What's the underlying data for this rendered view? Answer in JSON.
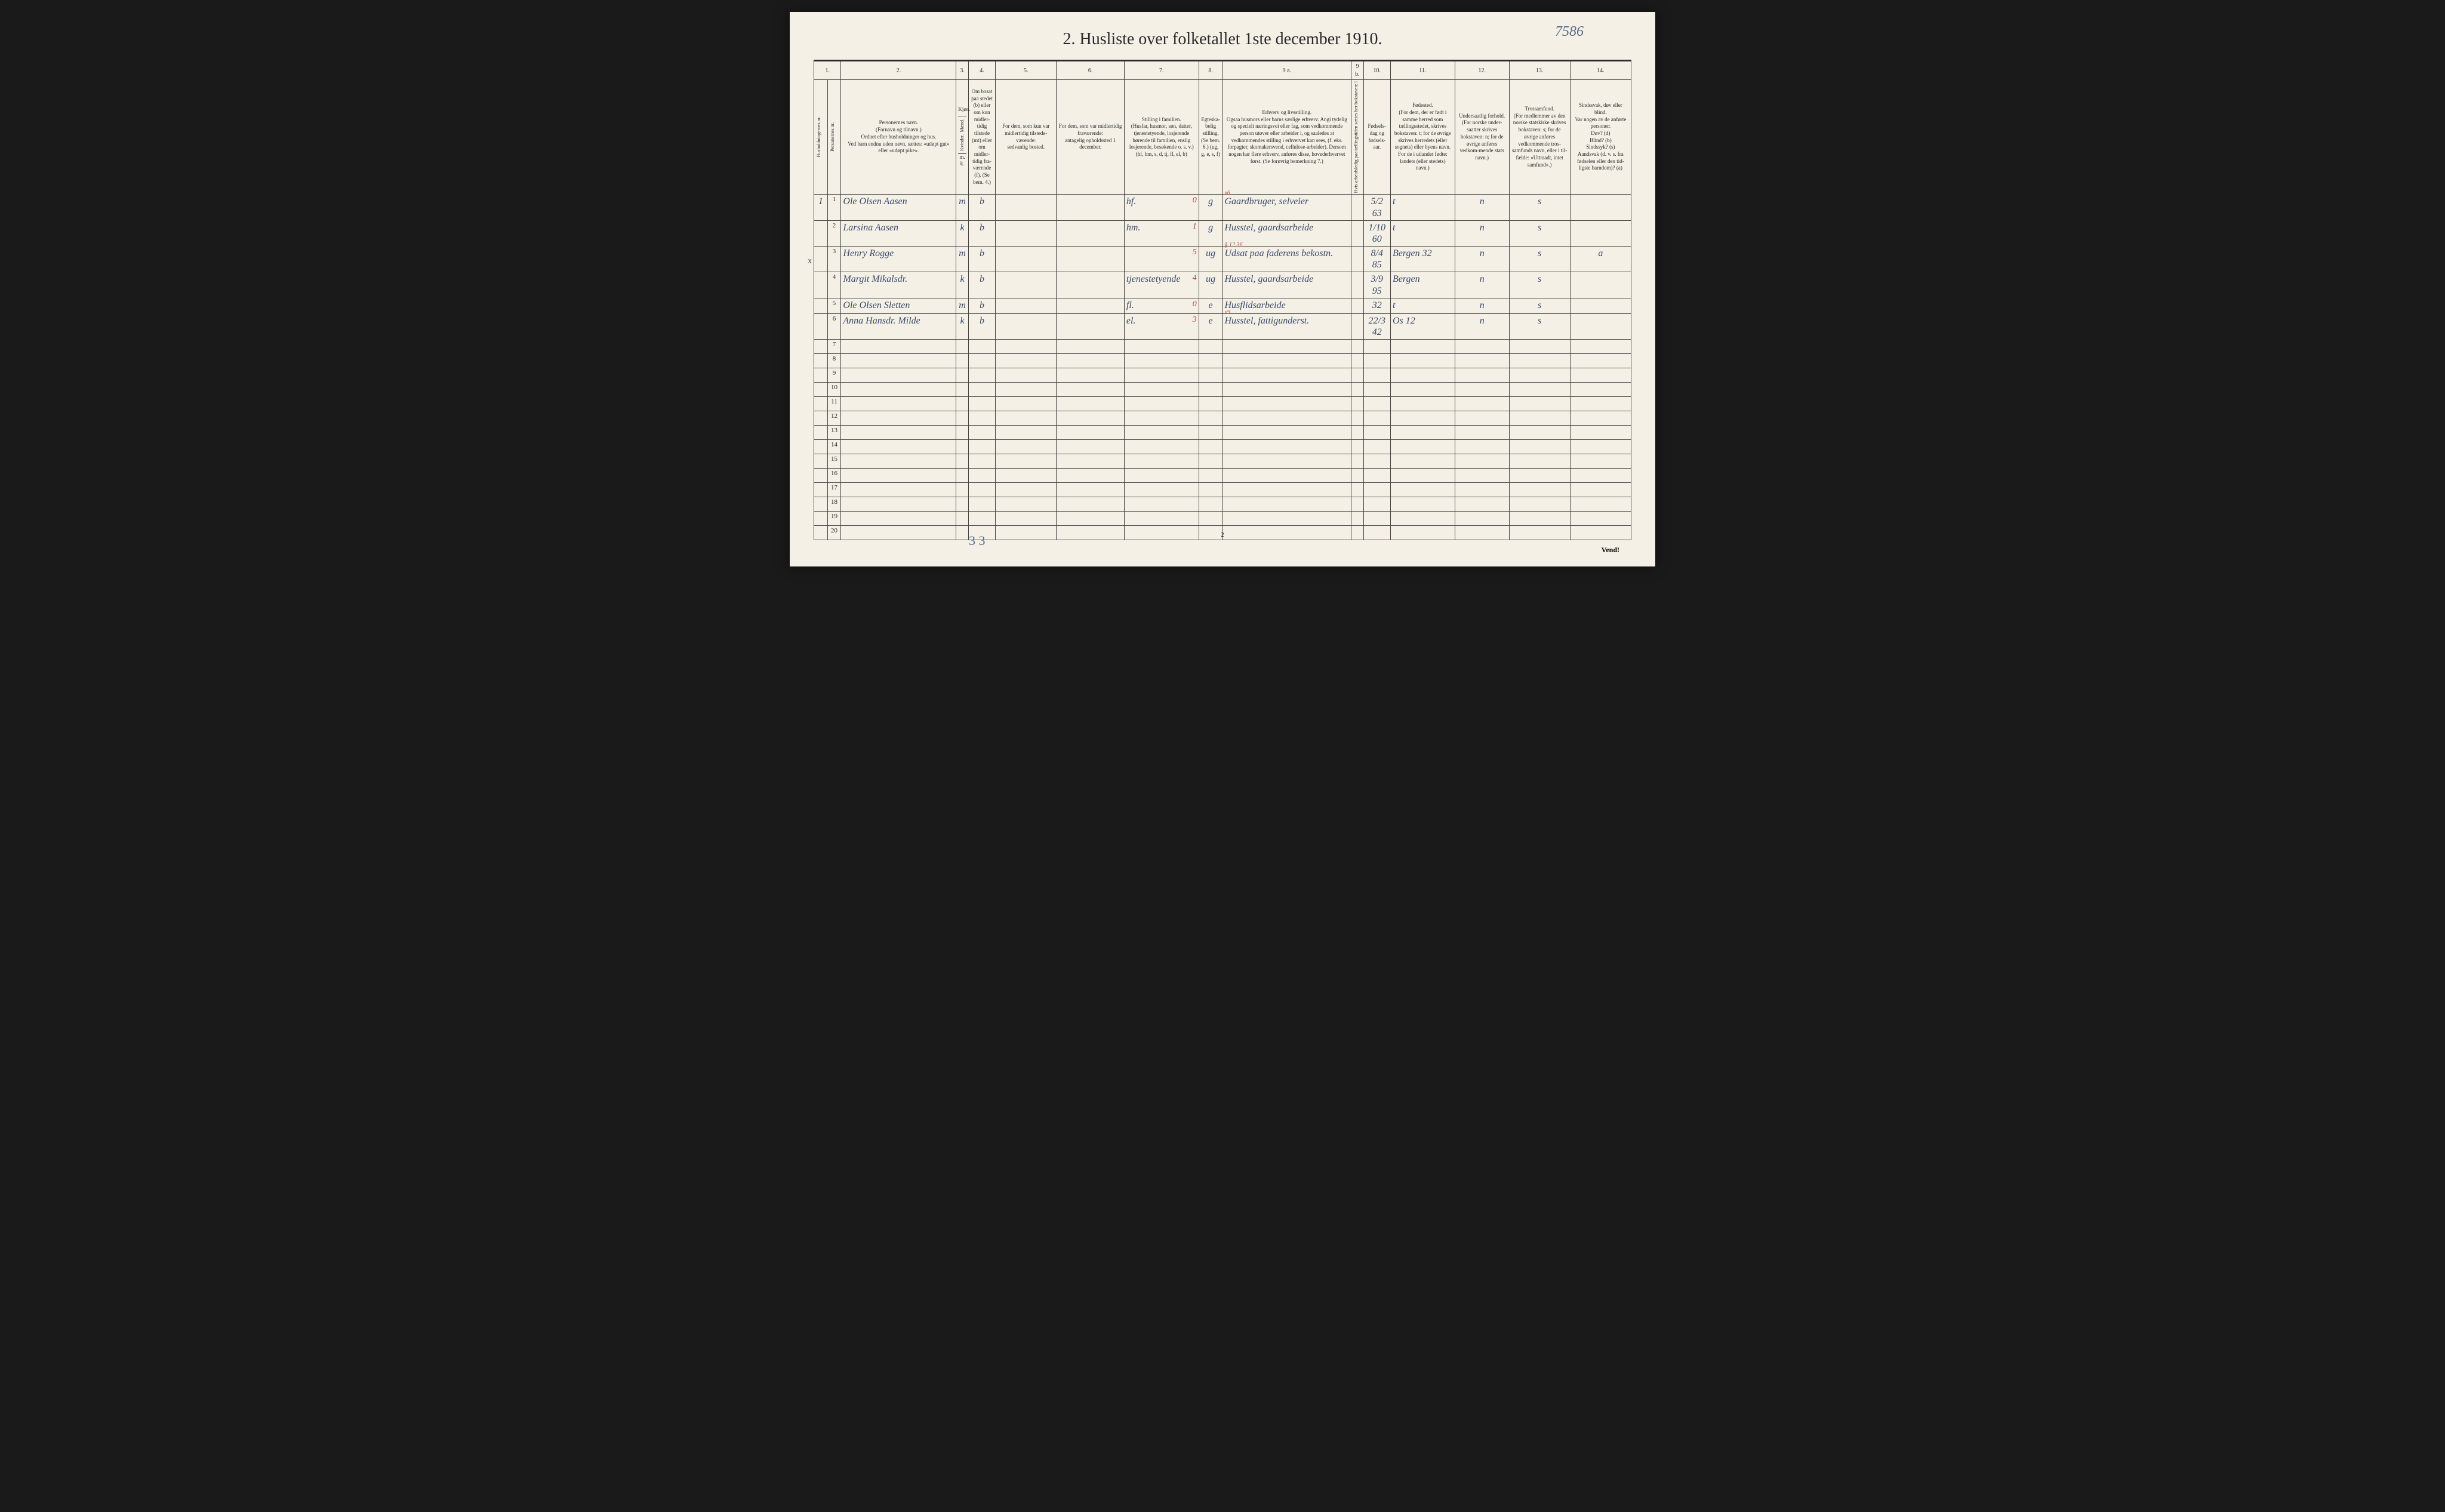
{
  "handwritten_page_no": "7586",
  "title": "2.  Husliste over folketallet 1ste december 1910.",
  "column_numbers": [
    "1.",
    "2.",
    "3.",
    "4.",
    "5.",
    "6.",
    "7.",
    "8.",
    "9 a.",
    "9 b.",
    "10.",
    "11.",
    "12.",
    "13.",
    "14."
  ],
  "headers": {
    "hush_nr": "Husholdningernes nr.",
    "pers_nr": "Personernes nr.",
    "navn": "Personernes navn.\n(Fornavn og tilnavn.)\nOrdnet efter husholdninger og hus.\nVed barn endnu uden navn, sættes: «udøpt gut» eller «udøpt pike».",
    "kjon": "Kjøn.",
    "kjon_m": "Mænd.",
    "kjon_k": "Kvinder.",
    "kjon_mk": "m.  k.",
    "bosat": "Om bosat paa stedet (b) eller om kun midler-tidig tilstede (mt) eller om midler-tidig fra-værende (f). (Se bem. 4.)",
    "midler": "For dem, som kun var midlertidig tilstede-værende:\nsedvanlig bosted.",
    "frav": "For dem, som var midlertidig fraværende:\nantagelig opholdssted 1 december.",
    "stilling_fam": "Stilling i familien.\n(Husfar, husmor, søn, datter, tjenestetyende, losjerende hørende til familien, enslig losjerende, besøkende o. s. v.)\n(hf, hm, s, d, tj, fl, el, b)",
    "egt": "Egteska-belig stilling. (Se bem. 6.) (ug, g, e, s, f)",
    "erhverv": "Erhverv og livsstilling.\nOgsaa husmors eller barns særlige erhverv. Angi tydelig og specielt næringsvei eller fag, som vedkommende person utøver eller arbeider i, og saaledes at vedkommendes stilling i erhvervet kan sees, (f. eks. forpagter, skomakersvend, cellulose-arbeider). Dersom nogen har flere erhverv, anføres disse, hovederhvervet først. (Se forøvrig bemerkning 7.)",
    "col9b": "Hvis arbeidsledig paa tællingstiden sættes her bokstaven: l",
    "fodselsdag": "Fødsels-dag og fødsels-aar.",
    "fodested": "Fødested.\n(For dem, der er født i samme herred som tællingsstedet, skrives bokstaven: t; for de øvrige skrives herredets (eller sognets) eller byens navn. For de i utlandet fødte: landets (eller stedets) navn.)",
    "undersaat": "Undersaatlig forhold.\n(For norske under-saatter skrives bokstaven: n; for de øvrige anføres vedkom-mende stats navn.)",
    "tros": "Trossamfund.\n(For medlemmer av den norske statskirke skrives bokstaven: s; for de øvrige anføres vedkommende tros-samfunds navn, eller i til-fælde: «Uttraadt, intet samfund».)",
    "sind": "Sindssvak, døv eller blind.\nVar nogen av de anførte personer:\nDøv?     (d)\nBlind?   (b)\nSindssyk? (s)\nAandsvak (d. v. s. fra fødselen eller den tid-ligste barndom)? (a)"
  },
  "rows": [
    {
      "n": "1",
      "hush": "1",
      "navn": "Ole Olsen Aasen",
      "mk": "m",
      "bosat": "b",
      "stilling": "hf.",
      "stilling_sup": "0",
      "egt": "g",
      "erhverv_sup": "x6",
      "erhverv": "Gaardbruger, selveier",
      "fdag": "5/2 63",
      "fsted": "t",
      "und": "n",
      "tros": "s",
      "sind": ""
    },
    {
      "n": "2",
      "hush": "",
      "navn": "Larsina Aasen",
      "mk": "k",
      "bosat": "b",
      "stilling": "hm.",
      "stilling_sup": "1",
      "egt": "g",
      "erhverv_sup": "",
      "erhverv": "Husstel, gaardsarbeide",
      "fdag": "1/10 60",
      "fsted": "t",
      "und": "n",
      "tros": "s",
      "sind": ""
    },
    {
      "n": "3",
      "hush": "",
      "navn": "Henry Rogge",
      "mk": "m",
      "bosat": "b",
      "stilling": "",
      "stilling_sup": "5",
      "egt": "ug",
      "erhverv_sup": "§ 12 36",
      "erhverv": "Udsat paa faderens bekostn.",
      "fdag": "8/4 85",
      "fsted": "Bergen 32",
      "und": "n",
      "tros": "s",
      "sind": "a"
    },
    {
      "n": "4",
      "hush": "",
      "navn": "Margit Mikalsdr.",
      "mk": "k",
      "bosat": "b",
      "stilling": "tjenestetyende",
      "stilling_sup": "4",
      "egt": "ug",
      "erhverv_sup": "",
      "erhverv": "Husstel, gaardsarbeide",
      "fdag": "3/9 95",
      "fsted": "Bergen",
      "und": "n",
      "tros": "s",
      "sind": ""
    },
    {
      "n": "5",
      "hush": "",
      "navn": "Ole Olsen Sletten",
      "mk": "m",
      "bosat": "b",
      "stilling": "fl.",
      "stilling_sup": "0",
      "egt": "e",
      "erhverv_sup": "",
      "erhverv": "Husflidsarbeide",
      "fdag": "32",
      "fsted": "t",
      "und": "n",
      "tros": "s",
      "sind": ""
    },
    {
      "n": "6",
      "hush": "",
      "x_mark": "x",
      "navn": "Anna Hansdr. Milde",
      "mk": "k",
      "bosat": "b",
      "stilling": "el.",
      "stilling_sup": "3",
      "egt": "e",
      "erhverv_sup": "x9",
      "erhverv": "Husstel, fattigunderst.",
      "fdag": "22/3 42",
      "fsted": "Os 12",
      "und": "n",
      "tros": "s",
      "sind": ""
    }
  ],
  "empty_row_numbers": [
    "7",
    "8",
    "9",
    "10",
    "11",
    "12",
    "13",
    "14",
    "15",
    "16",
    "17",
    "18",
    "19",
    "20"
  ],
  "bottom_tally": "3  3",
  "footer_vend": "Vend!",
  "footer_page": "2",
  "colors": {
    "paper": "#f4f0e6",
    "ink": "#2a2a2a",
    "hand_blue": "#3a4a6b",
    "hand_red": "#b04545",
    "page_num_blue": "#5a6b8c"
  }
}
